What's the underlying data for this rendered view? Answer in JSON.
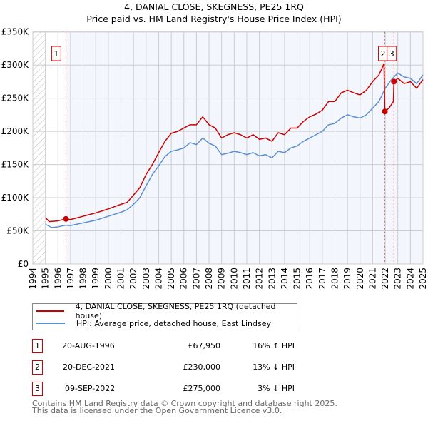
{
  "chart_data": {
    "type": "line",
    "title": "4, DANIAL CLOSE, SKEGNESS, PE25 1RQ",
    "subtitle": "Price paid vs. HM Land Registry's House Price Index (HPI)",
    "xlim": [
      1994,
      2025
    ],
    "ylim": [
      0,
      350000
    ],
    "x_ticks": [
      "1994",
      "1995",
      "1996",
      "1997",
      "1998",
      "1999",
      "2000",
      "2001",
      "2002",
      "2003",
      "2004",
      "2005",
      "2006",
      "2007",
      "2008",
      "2009",
      "2010",
      "2011",
      "2012",
      "2013",
      "2014",
      "2015",
      "2016",
      "2017",
      "2018",
      "2019",
      "2020",
      "2021",
      "2022",
      "2023",
      "2024",
      "2025"
    ],
    "y_ticks": [
      {
        "v": 0,
        "l": "£0"
      },
      {
        "v": 50000,
        "l": "£50K"
      },
      {
        "v": 100000,
        "l": "£100K"
      },
      {
        "v": 150000,
        "l": "£150K"
      },
      {
        "v": 200000,
        "l": "£200K"
      },
      {
        "v": 250000,
        "l": "£250K"
      },
      {
        "v": 300000,
        "l": "£300K"
      },
      {
        "v": 350000,
        "l": "£350K"
      }
    ],
    "grid": true,
    "series": [
      {
        "name": "4, DANIAL CLOSE, SKEGNESS, PE25 1RQ (detached house)",
        "color": "#cc0000",
        "x": [
          1995,
          1995.3,
          1996,
          1996.6,
          1997,
          1998,
          1999,
          2000,
          2001,
          2001.5,
          2002,
          2002.5,
          2003,
          2003.5,
          2004,
          2004.5,
          2005,
          2005.5,
          2006,
          2006.5,
          2007,
          2007.5,
          2008,
          2008.5,
          2009,
          2009.5,
          2010,
          2010.5,
          2011,
          2011.5,
          2012,
          2012.5,
          2013,
          2013.5,
          2014,
          2014.5,
          2015,
          2015.5,
          2016,
          2016.5,
          2017,
          2017.5,
          2018,
          2018.5,
          2019,
          2019.5,
          2020,
          2020.5,
          2021,
          2021.5,
          2021.9,
          2021.97,
          2022.3,
          2022.65,
          2022.69,
          2023,
          2023.5,
          2024,
          2024.5,
          2025
        ],
        "y": [
          70000,
          64000,
          65000,
          68000,
          67000,
          72000,
          77000,
          83000,
          90000,
          93000,
          104000,
          115000,
          135000,
          150000,
          168000,
          185000,
          197000,
          200000,
          205000,
          210000,
          210000,
          222000,
          210000,
          205000,
          190000,
          195000,
          198000,
          195000,
          190000,
          195000,
          188000,
          190000,
          185000,
          198000,
          195000,
          205000,
          205000,
          215000,
          222000,
          226000,
          232000,
          245000,
          245000,
          258000,
          262000,
          258000,
          255000,
          262000,
          275000,
          285000,
          302000,
          230000,
          235000,
          245000,
          275000,
          280000,
          272000,
          275000,
          265000,
          278000
        ]
      },
      {
        "name": "HPI: Average price, detached house, East Lindsey",
        "color": "#5b8fd4",
        "x": [
          1995,
          1995.5,
          1996,
          1996.6,
          1997,
          1998,
          1999,
          2000,
          2001,
          2001.5,
          2002,
          2002.5,
          2003,
          2003.5,
          2004,
          2004.5,
          2005,
          2005.5,
          2006,
          2006.5,
          2007,
          2007.5,
          2008,
          2008.5,
          2009,
          2009.5,
          2010,
          2010.5,
          2011,
          2011.5,
          2012,
          2012.5,
          2013,
          2013.5,
          2014,
          2014.5,
          2015,
          2015.5,
          2016,
          2016.5,
          2017,
          2017.5,
          2018,
          2018.5,
          2019,
          2019.5,
          2020,
          2020.5,
          2021,
          2021.5,
          2022,
          2022.5,
          2023,
          2023.5,
          2024,
          2024.5,
          2025
        ],
        "y": [
          60000,
          55000,
          56000,
          58500,
          58000,
          62000,
          66000,
          72000,
          78000,
          82000,
          90000,
          100000,
          118000,
          135000,
          148000,
          162000,
          170000,
          172000,
          175000,
          183000,
          180000,
          190000,
          182000,
          178000,
          165000,
          167000,
          170000,
          168000,
          165000,
          168000,
          163000,
          165000,
          160000,
          170000,
          168000,
          175000,
          178000,
          185000,
          190000,
          195000,
          200000,
          210000,
          212000,
          220000,
          225000,
          222000,
          220000,
          225000,
          235000,
          245000,
          265000,
          278000,
          288000,
          282000,
          280000,
          272000,
          285000
        ]
      }
    ],
    "sales": [
      {
        "id": "1",
        "x": 1996.63,
        "y": 67950,
        "date": "20-AUG-1996",
        "price": "£67,950",
        "hpi": "16% ↑ HPI"
      },
      {
        "id": "2",
        "x": 2021.97,
        "y": 230000,
        "date": "20-DEC-2021",
        "price": "£230,000",
        "hpi": "13% ↓ HPI"
      },
      {
        "id": "3",
        "x": 2022.69,
        "y": 275000,
        "date": "09-SEP-2022",
        "price": "£275,000",
        "hpi": "3% ↓ HPI"
      }
    ],
    "legend_position": "below"
  },
  "footer": {
    "line1": "Contains HM Land Registry data © Crown copyright and database right 2025.",
    "line2": "This data is licensed under the Open Government Licence v3.0."
  }
}
